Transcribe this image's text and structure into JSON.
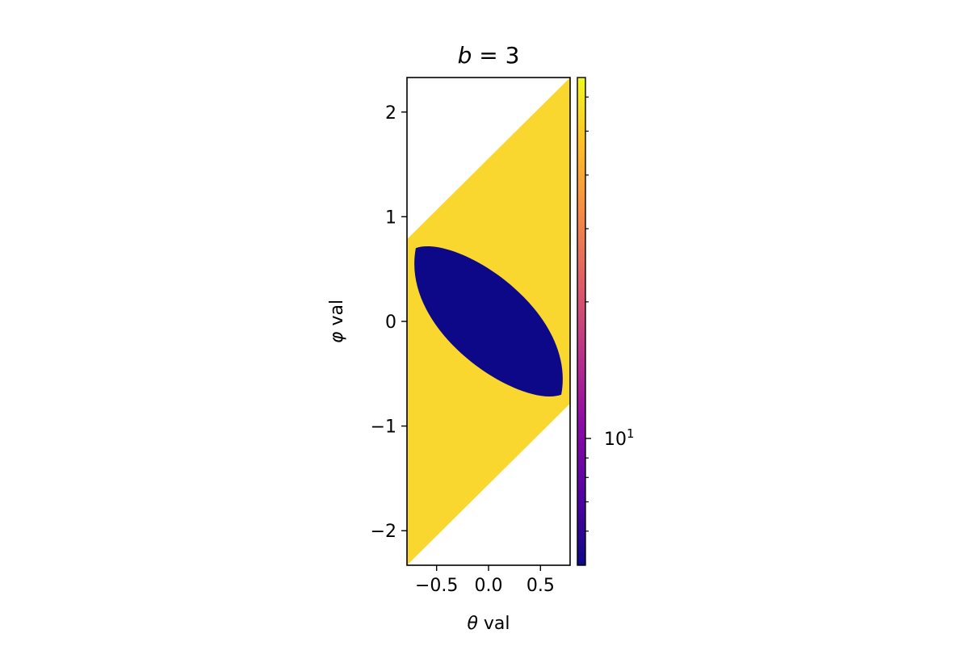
{
  "chart_data": {
    "type": "heatmap",
    "title": {
      "var": "b",
      "rest": " = 3"
    },
    "xlabel": {
      "var": "θ",
      "rest": " val"
    },
    "ylabel": {
      "var": "φ",
      "rest": " val"
    },
    "xlim": [
      -0.785,
      0.785
    ],
    "ylim": [
      -2.33,
      2.33
    ],
    "xticks": [
      {
        "value": -0.5,
        "label": "−0.5"
      },
      {
        "value": 0.0,
        "label": "0.0"
      },
      {
        "value": 0.5,
        "label": "0.5"
      }
    ],
    "yticks": [
      {
        "value": -2,
        "label": "−2"
      },
      {
        "value": -1,
        "label": "−1"
      },
      {
        "value": 0,
        "label": "0"
      },
      {
        "value": 1,
        "label": "1"
      },
      {
        "value": 2,
        "label": "2"
      }
    ],
    "regions": [
      {
        "name": "high-value-parallelogram",
        "color": "#f9d72e",
        "vertices": [
          [
            -0.785,
            0.785
          ],
          [
            0.785,
            2.33
          ],
          [
            0.785,
            -0.785
          ],
          [
            -0.785,
            -2.33
          ]
        ]
      },
      {
        "name": "low-value-lens",
        "color": "#0d0887",
        "vertices": [
          [
            -0.7,
            0.7
          ],
          [
            0.7,
            -0.7
          ]
        ],
        "description": "lens between corners (-0.7, 0.7) and (0.7, -0.7)"
      }
    ],
    "colorbar": {
      "colormap": "plasma",
      "scale": "log",
      "colors": [
        "#0d0887",
        "#5302a3",
        "#8b0aa5",
        "#b83289",
        "#db5c68",
        "#f48849",
        "#febc2a",
        "#f0f921"
      ],
      "major_tick": {
        "label_base": "10",
        "label_exp": "1",
        "position": 0.26
      },
      "minor_tick_positions": [
        0.07,
        0.13,
        0.18,
        0.22,
        0.54,
        0.69,
        0.8,
        0.89,
        0.96
      ]
    }
  }
}
